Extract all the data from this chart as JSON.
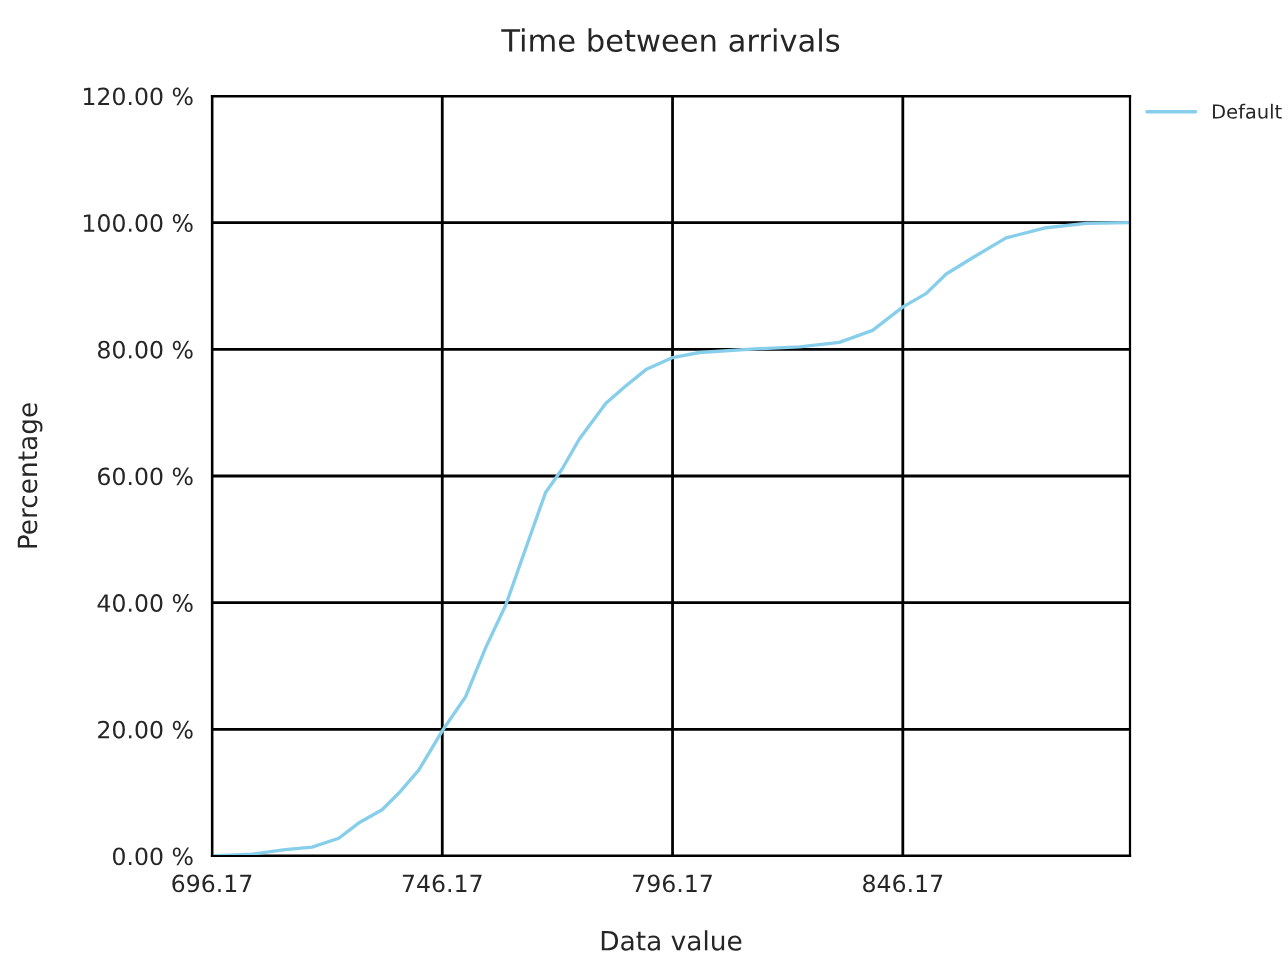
{
  "chart_data": {
    "type": "line",
    "title": "Time between arrivals",
    "xlabel": "Data value",
    "ylabel": "Percentage",
    "series": [
      {
        "name": "Default",
        "color": "#87ceeb",
        "x": [
          696.17,
          704.9,
          712.1,
          717.9,
          723.7,
          728.0,
          733.1,
          736.7,
          741.1,
          746.2,
          751.2,
          755.6,
          760.0,
          764.3,
          768.6,
          772.2,
          775.9,
          781.7,
          786.0,
          790.4,
          796.2,
          802.0,
          815.0,
          823.7,
          832.4,
          839.6,
          846.2,
          851.2,
          855.6,
          861.4,
          868.6,
          877.3,
          886.0,
          895.4
        ],
        "values": [
          0,
          0.3,
          1.0,
          1.4,
          2.8,
          5.2,
          7.3,
          9.9,
          13.6,
          19.8,
          25.1,
          32.9,
          39.7,
          48.6,
          57.4,
          61.1,
          65.8,
          71.5,
          74.2,
          76.8,
          78.7,
          79.5,
          80.1,
          80.4,
          81.1,
          83.0,
          86.7,
          88.8,
          91.9,
          94.5,
          97.6,
          99.2,
          99.9,
          100
        ]
      }
    ],
    "xlim": [
      696.17,
      895.5
    ],
    "xticks": [
      696.17,
      746.17,
      796.17,
      846.17
    ],
    "ylim": [
      0,
      120
    ],
    "yticks": [
      {
        "value": 0,
        "label": "0.00 %"
      },
      {
        "value": 20,
        "label": "20.00 %"
      },
      {
        "value": 40,
        "label": "40.00 %"
      },
      {
        "value": 60,
        "label": "60.00 %"
      },
      {
        "value": 80,
        "label": "80.00 %"
      },
      {
        "value": 100,
        "label": "100.00 %"
      },
      {
        "value": 120,
        "label": "120.00 %"
      }
    ],
    "grid": true,
    "legend": "top right",
    "marker": "none",
    "line_style": "solid"
  }
}
